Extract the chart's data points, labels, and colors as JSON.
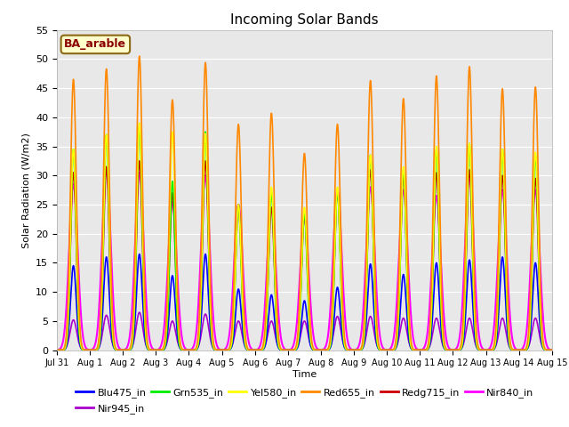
{
  "title": "Incoming Solar Bands",
  "xlabel": "Time",
  "ylabel": "Solar Radiation (W/m2)",
  "annotation": "BA_arable",
  "ylim": [
    0,
    55
  ],
  "background_color": "#e8e8e8",
  "series_order": [
    "Nir945_in",
    "Blu475_in",
    "Nir840_in",
    "Redg715_in",
    "Grn535_in",
    "Yel580_in",
    "Red655_in"
  ],
  "series": {
    "Blu475_in": {
      "color": "#0000ff",
      "lw": 1.2,
      "sigma": 0.085
    },
    "Grn535_in": {
      "color": "#00ee00",
      "lw": 1.2,
      "sigma": 0.08
    },
    "Yel580_in": {
      "color": "#ffff00",
      "lw": 1.2,
      "sigma": 0.085
    },
    "Red655_in": {
      "color": "#ff8800",
      "lw": 1.2,
      "sigma": 0.09
    },
    "Redg715_in": {
      "color": "#cc0000",
      "lw": 1.2,
      "sigma": 0.085
    },
    "Nir840_in": {
      "color": "#ff00ff",
      "lw": 1.5,
      "sigma": 0.13
    },
    "Nir945_in": {
      "color": "#aa00cc",
      "lw": 1.2,
      "sigma": 0.1
    }
  },
  "xtick_labels": [
    "Jul 31",
    "Aug 1",
    "Aug 2",
    "Aug 3",
    "Aug 4",
    "Aug 5",
    "Aug 6",
    "Aug 7",
    "Aug 8",
    "Aug 9",
    "Aug 10",
    "Aug 11",
    "Aug 12",
    "Aug 13",
    "Aug 14",
    "Aug 15"
  ],
  "ytick_values": [
    0,
    5,
    10,
    15,
    20,
    25,
    30,
    35,
    40,
    45,
    50,
    55
  ],
  "peak_heights": {
    "Red655_in": [
      46.5,
      48.3,
      50.5,
      43.0,
      49.4,
      38.8,
      40.7,
      33.8,
      38.8,
      46.3,
      43.2,
      47.1,
      48.7,
      44.9,
      45.2
    ],
    "Yel580_in": [
      34.5,
      37.0,
      39.0,
      37.5,
      37.2,
      25.0,
      28.0,
      24.5,
      28.0,
      33.5,
      31.5,
      35.0,
      35.5,
      34.5,
      34.0
    ],
    "Grn535_in": [
      34.5,
      37.0,
      38.5,
      29.0,
      37.5,
      25.0,
      27.0,
      23.5,
      27.5,
      33.5,
      31.0,
      34.5,
      35.5,
      34.5,
      33.5
    ],
    "Redg715_in": [
      30.5,
      31.5,
      32.5,
      27.0,
      32.5,
      25.0,
      24.5,
      23.5,
      27.5,
      31.0,
      30.0,
      30.5,
      31.0,
      30.0,
      29.5
    ],
    "Nir840_in": [
      28.5,
      31.0,
      30.5,
      25.5,
      30.0,
      25.0,
      24.5,
      22.5,
      27.5,
      28.0,
      27.5,
      26.5,
      30.5,
      27.5,
      27.5
    ],
    "Blu475_in": [
      14.5,
      16.0,
      16.5,
      12.8,
      16.5,
      10.5,
      9.5,
      8.5,
      10.8,
      14.8,
      13.0,
      15.0,
      15.5,
      16.0,
      15.0
    ],
    "Nir945_in": [
      5.2,
      6.0,
      6.5,
      5.0,
      6.2,
      5.0,
      5.0,
      5.0,
      5.8,
      5.8,
      5.5,
      5.5,
      5.5,
      5.5,
      5.5
    ]
  },
  "legend_items": [
    {
      "label": "Blu475_in",
      "color": "#0000ff"
    },
    {
      "label": "Grn535_in",
      "color": "#00ee00"
    },
    {
      "label": "Yel580_in",
      "color": "#ffff00"
    },
    {
      "label": "Red655_in",
      "color": "#ff8800"
    },
    {
      "label": "Redg715_in",
      "color": "#cc0000"
    },
    {
      "label": "Nir840_in",
      "color": "#ff00ff"
    },
    {
      "label": "Nir945_in",
      "color": "#aa00cc"
    }
  ]
}
